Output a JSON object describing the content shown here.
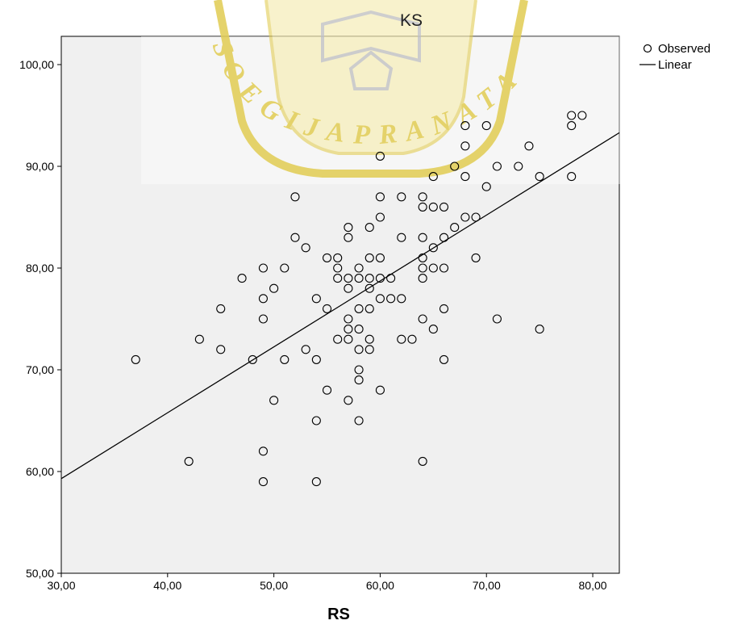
{
  "chart_data": {
    "type": "scatter",
    "title": "KS",
    "xlabel": "RS",
    "ylabel": "",
    "xlim": [
      30,
      82.5
    ],
    "ylim": [
      50,
      103
    ],
    "xticks": [
      "30,00",
      "40,00",
      "50,00",
      "60,00",
      "70,00",
      "80,00"
    ],
    "xtick_values": [
      30,
      40,
      50,
      60,
      70,
      80
    ],
    "yticks": [
      "50,00",
      "60,00",
      "70,00",
      "80,00",
      "90,00",
      "100,00"
    ],
    "ytick_values": [
      50,
      60,
      70,
      80,
      90,
      100
    ],
    "legend": {
      "placement": "top-right",
      "entries": [
        "Observed",
        "Linear"
      ]
    },
    "series": [
      {
        "name": "Observed",
        "kind": "scatter",
        "marker": "open-circle",
        "points": [
          [
            37,
            71
          ],
          [
            42,
            61
          ],
          [
            43,
            73
          ],
          [
            45,
            76
          ],
          [
            45,
            72
          ],
          [
            47,
            79
          ],
          [
            48,
            71
          ],
          [
            49,
            80
          ],
          [
            49,
            77
          ],
          [
            49,
            75
          ],
          [
            49,
            62
          ],
          [
            49,
            59
          ],
          [
            50,
            78
          ],
          [
            50,
            67
          ],
          [
            51,
            80
          ],
          [
            51,
            71
          ],
          [
            52,
            87
          ],
          [
            52,
            83
          ],
          [
            53,
            82
          ],
          [
            53,
            72
          ],
          [
            54,
            77
          ],
          [
            54,
            71
          ],
          [
            54,
            65
          ],
          [
            54,
            59
          ],
          [
            55,
            81
          ],
          [
            55,
            76
          ],
          [
            55,
            68
          ],
          [
            56,
            81
          ],
          [
            56,
            80
          ],
          [
            56,
            79
          ],
          [
            56,
            73
          ],
          [
            57,
            84
          ],
          [
            57,
            83
          ],
          [
            57,
            79
          ],
          [
            57,
            78
          ],
          [
            57,
            75
          ],
          [
            57,
            74
          ],
          [
            57,
            73
          ],
          [
            57,
            67
          ],
          [
            58,
            80
          ],
          [
            58,
            79
          ],
          [
            58,
            76
          ],
          [
            58,
            74
          ],
          [
            58,
            72
          ],
          [
            58,
            70
          ],
          [
            58,
            69
          ],
          [
            58,
            65
          ],
          [
            59,
            84
          ],
          [
            59,
            81
          ],
          [
            59,
            79
          ],
          [
            59,
            78
          ],
          [
            59,
            76
          ],
          [
            59,
            73
          ],
          [
            59,
            72
          ],
          [
            60,
            91
          ],
          [
            60,
            87
          ],
          [
            60,
            85
          ],
          [
            60,
            81
          ],
          [
            60,
            79
          ],
          [
            60,
            77
          ],
          [
            60,
            68
          ],
          [
            61,
            79
          ],
          [
            61,
            77
          ],
          [
            62,
            87
          ],
          [
            62,
            83
          ],
          [
            62,
            77
          ],
          [
            62,
            73
          ],
          [
            63,
            73
          ],
          [
            64,
            87
          ],
          [
            64,
            86
          ],
          [
            64,
            83
          ],
          [
            64,
            81
          ],
          [
            64,
            80
          ],
          [
            64,
            79
          ],
          [
            64,
            75
          ],
          [
            64,
            61
          ],
          [
            65,
            89
          ],
          [
            65,
            86
          ],
          [
            65,
            82
          ],
          [
            65,
            80
          ],
          [
            65,
            74
          ],
          [
            66,
            86
          ],
          [
            66,
            83
          ],
          [
            66,
            80
          ],
          [
            66,
            76
          ],
          [
            66,
            71
          ],
          [
            67,
            90
          ],
          [
            67,
            84
          ],
          [
            68,
            94
          ],
          [
            68,
            92
          ],
          [
            68,
            89
          ],
          [
            68,
            85
          ],
          [
            69,
            85
          ],
          [
            69,
            81
          ],
          [
            70,
            94
          ],
          [
            70,
            88
          ],
          [
            71,
            90
          ],
          [
            71,
            75
          ],
          [
            73,
            90
          ],
          [
            74,
            92
          ],
          [
            75,
            89
          ],
          [
            75,
            74
          ],
          [
            78,
            95
          ],
          [
            78,
            94
          ],
          [
            78,
            89
          ],
          [
            79,
            95
          ]
        ]
      },
      {
        "name": "Linear",
        "kind": "line",
        "points": [
          [
            30,
            59.3
          ],
          [
            82.5,
            93.3
          ]
        ]
      }
    ],
    "grid": false
  },
  "colors": {
    "plot_bg": "#f0f0f0",
    "marker": "#000000",
    "line": "#000000",
    "watermark": "#e3cf5c"
  },
  "watermark": {
    "text": "SOEGIJAPRANATA"
  }
}
